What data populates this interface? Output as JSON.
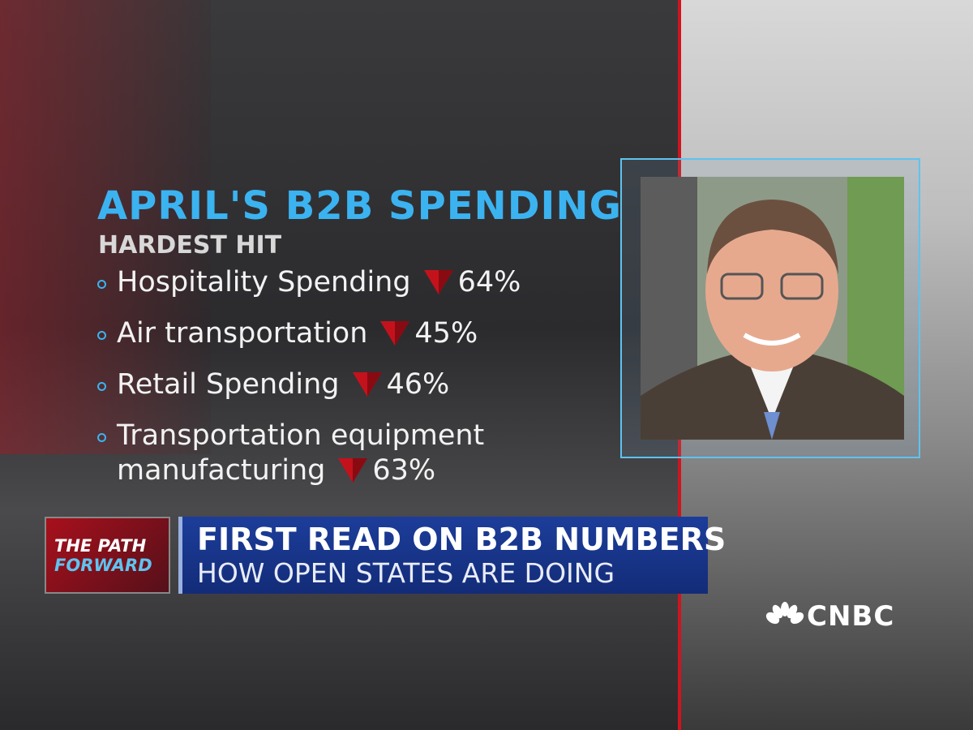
{
  "graphic": {
    "title": "APRIL'S B2B SPENDING",
    "subtitle": "HARDEST HIT",
    "items": [
      {
        "label": "Hospitality Spending",
        "change": "64%"
      },
      {
        "label": "Air transportation",
        "change": "45%"
      },
      {
        "label": "Retail Spending",
        "change": "46%"
      },
      {
        "label": "Transportation equipment manufacturing",
        "change": "63%"
      }
    ]
  },
  "lower_third": {
    "show_top": "THE PATH",
    "show_bottom": "FORWARD",
    "headline": "FIRST READ ON B2B NUMBERS",
    "subheadline": "HOW OPEN STATES ARE DOING"
  },
  "network": "CNBC"
}
